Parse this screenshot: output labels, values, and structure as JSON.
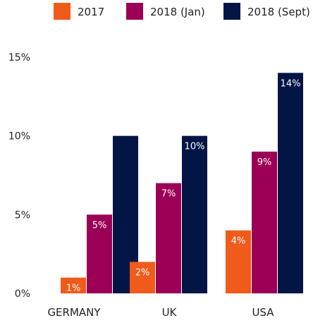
{
  "chart_data": {
    "type": "bar",
    "title": "",
    "xlabel": "",
    "ylabel": "",
    "categories": [
      "GERMANY",
      "UK",
      "USA"
    ],
    "series": [
      {
        "name": "2017",
        "color": "#f05a1a",
        "values": [
          1,
          2,
          4
        ],
        "labels": [
          "1%",
          "2%",
          "4%"
        ]
      },
      {
        "name": "2018 (Jan)",
        "color": "#9c0056",
        "values": [
          5,
          7,
          9
        ],
        "labels": [
          "5%",
          "7%",
          "9%"
        ]
      },
      {
        "name": "2018 (Sept)",
        "color": "#021545",
        "values": [
          10,
          10,
          14
        ],
        "labels": [
          "",
          "10%",
          "14%"
        ]
      }
    ],
    "ylim": [
      0,
      15
    ],
    "yticks": [
      0,
      5,
      10,
      15
    ],
    "ytick_labels": [
      "0%",
      "5%",
      "10%",
      "15%"
    ],
    "grid": false,
    "legend_position": "top"
  }
}
